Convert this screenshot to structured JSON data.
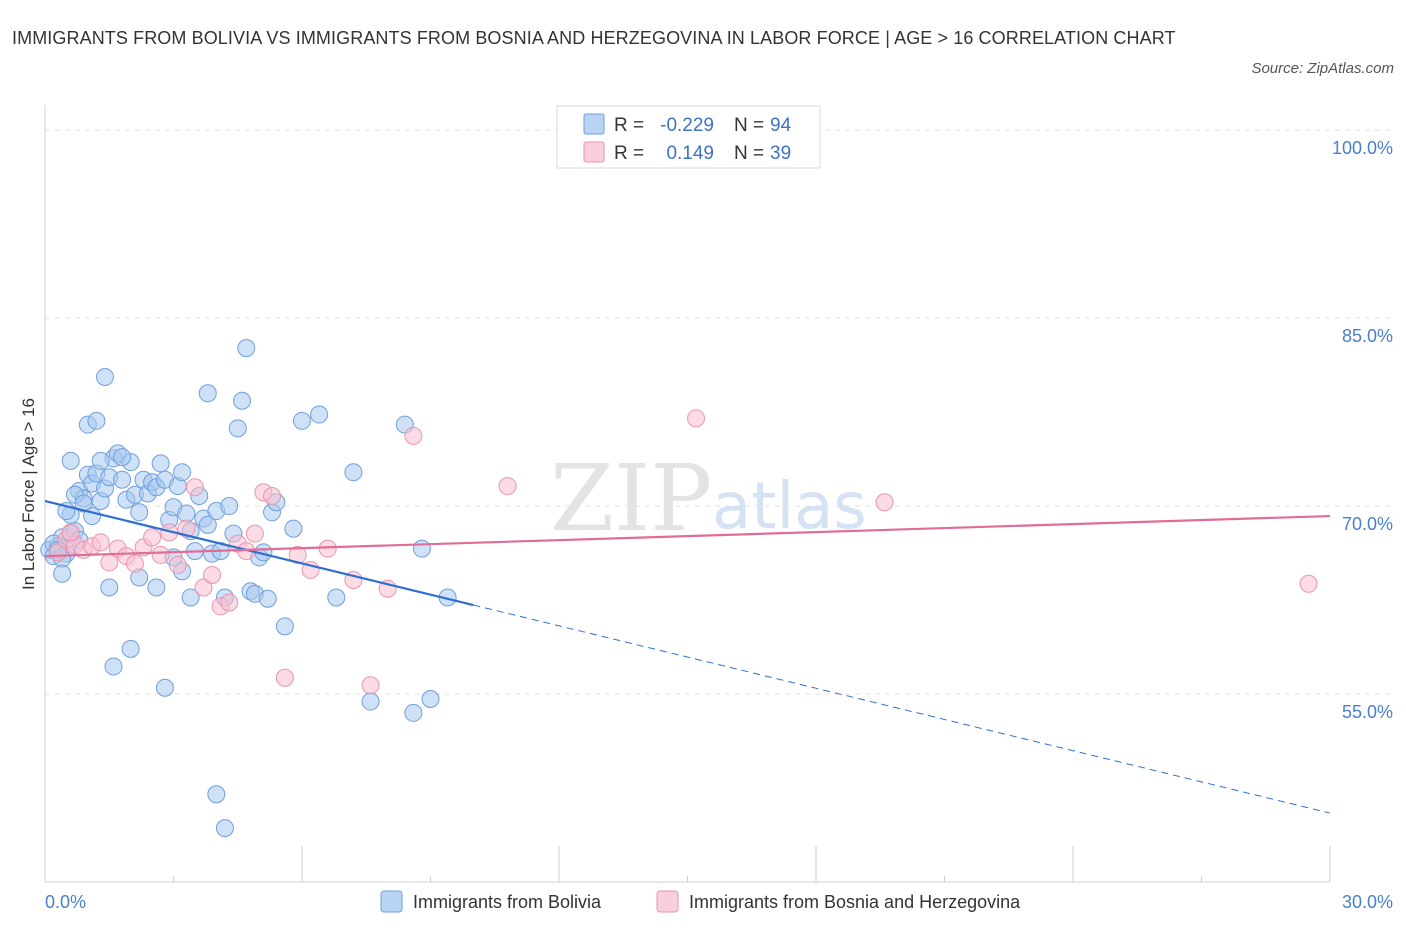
{
  "title": "IMMIGRANTS FROM BOLIVIA VS IMMIGRANTS FROM BOSNIA AND HERZEGOVINA IN LABOR FORCE | AGE > 16 CORRELATION CHART",
  "source": "Source: ZipAtlas.com",
  "watermark": {
    "zip": "ZIP",
    "atlas": "atlas"
  },
  "stats": {
    "bolivia": {
      "r_label": "R =",
      "r_value": "-0.229",
      "n_label": "N =",
      "n_value": "94"
    },
    "bosnia": {
      "r_label": "R =",
      "r_value": "0.149",
      "n_label": "N =",
      "n_value": "39"
    }
  },
  "legend": {
    "bolivia": "Immigrants from Bolivia",
    "bosnia": "Immigrants from Bosnia and Herzegovina"
  },
  "colors": {
    "bolivia_fill": "#a8c8f0",
    "bolivia_stroke": "#6f9fdc",
    "bolivia_line": "#2f6fd0",
    "bosnia_fill": "#f7c0d0",
    "bosnia_stroke": "#ea95b0",
    "bosnia_line": "#e06c98",
    "tick_text": "#4a7fcb",
    "grid": "#e2e2e2"
  },
  "chart_data": {
    "type": "scatter",
    "title": "IMMIGRANTS FROM BOLIVIA VS IMMIGRANTS FROM BOSNIA AND HERZEGOVINA IN LABOR FORCE | AGE > 16 CORRELATION CHART",
    "xlabel": "",
    "ylabel": "In Labor Force | Age > 16",
    "xlim": [
      0,
      30
    ],
    "ylim": [
      40,
      102
    ],
    "x_tick_labels": [
      "0.0%",
      "30.0%"
    ],
    "y_ticks": [
      55,
      70,
      85,
      100
    ],
    "y_tick_labels": [
      "55.0%",
      "70.0%",
      "85.0%",
      "100.0%"
    ],
    "grid": true,
    "series": [
      {
        "name": "Immigrants from Bolivia",
        "r": -0.229,
        "n": 94,
        "trend": {
          "x0": 0,
          "y0": 70.4,
          "x1": 10,
          "y1": 62.1,
          "dash_x1": 30,
          "dash_y1": 45.5
        },
        "points": [
          [
            0.1,
            66.5
          ],
          [
            0.2,
            66.0
          ],
          [
            0.3,
            66.8
          ],
          [
            0.4,
            67.5
          ],
          [
            0.5,
            66.2
          ],
          [
            0.6,
            67.8
          ],
          [
            0.7,
            68.0
          ],
          [
            0.8,
            67.3
          ],
          [
            0.2,
            67.0
          ],
          [
            0.4,
            65.8
          ],
          [
            0.6,
            69.3
          ],
          [
            0.8,
            71.2
          ],
          [
            0.9,
            70.6
          ],
          [
            1.0,
            72.5
          ],
          [
            1.1,
            71.8
          ],
          [
            1.2,
            72.6
          ],
          [
            1.3,
            70.4
          ],
          [
            1.4,
            71.4
          ],
          [
            1.5,
            72.3
          ],
          [
            1.6,
            73.8
          ],
          [
            1.7,
            74.2
          ],
          [
            1.8,
            72.1
          ],
          [
            1.9,
            70.5
          ],
          [
            2.0,
            73.5
          ],
          [
            2.1,
            70.9
          ],
          [
            2.2,
            69.5
          ],
          [
            2.3,
            72.1
          ],
          [
            2.4,
            71.0
          ],
          [
            2.5,
            71.9
          ],
          [
            2.6,
            71.5
          ],
          [
            2.7,
            73.4
          ],
          [
            2.8,
            72.1
          ],
          [
            2.9,
            68.9
          ],
          [
            3.0,
            69.9
          ],
          [
            3.1,
            71.6
          ],
          [
            3.2,
            72.7
          ],
          [
            3.3,
            69.4
          ],
          [
            3.4,
            68.0
          ],
          [
            3.5,
            66.4
          ],
          [
            3.6,
            70.8
          ],
          [
            3.7,
            69.0
          ],
          [
            3.8,
            68.5
          ],
          [
            3.9,
            66.2
          ],
          [
            4.0,
            69.6
          ],
          [
            4.1,
            66.4
          ],
          [
            4.2,
            62.7
          ],
          [
            4.3,
            70.0
          ],
          [
            4.4,
            67.8
          ],
          [
            4.5,
            76.2
          ],
          [
            4.6,
            78.4
          ],
          [
            4.7,
            82.6
          ],
          [
            4.8,
            63.2
          ],
          [
            4.9,
            63.0
          ],
          [
            5.0,
            65.9
          ],
          [
            5.1,
            66.3
          ],
          [
            5.2,
            62.6
          ],
          [
            5.3,
            69.5
          ],
          [
            5.4,
            70.3
          ],
          [
            5.6,
            60.4
          ],
          [
            5.8,
            68.2
          ],
          [
            6.0,
            76.8
          ],
          [
            6.4,
            77.3
          ],
          [
            6.8,
            62.7
          ],
          [
            7.2,
            72.7
          ],
          [
            7.6,
            54.4
          ],
          [
            8.4,
            76.5
          ],
          [
            8.6,
            53.5
          ],
          [
            8.8,
            66.6
          ],
          [
            9.0,
            54.6
          ],
          [
            9.4,
            62.7
          ],
          [
            1.0,
            76.5
          ],
          [
            1.2,
            76.8
          ],
          [
            1.4,
            80.3
          ],
          [
            1.5,
            63.5
          ],
          [
            1.6,
            57.2
          ],
          [
            1.8,
            73.9
          ],
          [
            2.0,
            58.6
          ],
          [
            2.2,
            64.3
          ],
          [
            2.6,
            63.5
          ],
          [
            2.8,
            55.5
          ],
          [
            3.0,
            65.9
          ],
          [
            3.2,
            64.8
          ],
          [
            3.4,
            62.7
          ],
          [
            3.8,
            79.0
          ],
          [
            4.0,
            47.0
          ],
          [
            4.2,
            44.3
          ],
          [
            0.5,
            69.6
          ],
          [
            0.3,
            66.5
          ],
          [
            0.7,
            70.9
          ],
          [
            0.9,
            70.2
          ],
          [
            1.1,
            69.2
          ],
          [
            0.4,
            64.6
          ],
          [
            1.3,
            73.6
          ],
          [
            0.6,
            73.6
          ]
        ]
      },
      {
        "name": "Immigrants from Bosnia and Herzegovina",
        "r": 0.149,
        "n": 39,
        "trend": {
          "x0": 0,
          "y0": 66.0,
          "x1": 30,
          "y1": 69.2
        },
        "points": [
          [
            0.3,
            66.3
          ],
          [
            0.5,
            67.3
          ],
          [
            0.7,
            66.9
          ],
          [
            0.9,
            66.5
          ],
          [
            1.1,
            66.8
          ],
          [
            1.3,
            67.1
          ],
          [
            1.5,
            65.5
          ],
          [
            1.7,
            66.6
          ],
          [
            1.9,
            66.0
          ],
          [
            2.1,
            65.4
          ],
          [
            2.3,
            66.7
          ],
          [
            2.5,
            67.5
          ],
          [
            2.7,
            66.1
          ],
          [
            2.9,
            67.9
          ],
          [
            3.1,
            65.3
          ],
          [
            3.3,
            68.2
          ],
          [
            3.5,
            71.5
          ],
          [
            3.7,
            63.5
          ],
          [
            3.9,
            64.5
          ],
          [
            4.1,
            62.0
          ],
          [
            4.3,
            62.3
          ],
          [
            4.5,
            67.0
          ],
          [
            4.7,
            66.4
          ],
          [
            4.9,
            67.8
          ],
          [
            5.1,
            71.1
          ],
          [
            5.3,
            70.8
          ],
          [
            5.6,
            56.3
          ],
          [
            5.9,
            66.1
          ],
          [
            6.2,
            64.9
          ],
          [
            6.6,
            66.6
          ],
          [
            7.2,
            64.1
          ],
          [
            7.6,
            55.7
          ],
          [
            8.0,
            63.4
          ],
          [
            8.6,
            75.6
          ],
          [
            10.8,
            71.6
          ],
          [
            15.2,
            77.0
          ],
          [
            19.6,
            70.3
          ],
          [
            29.5,
            63.8
          ],
          [
            0.6,
            67.9
          ]
        ]
      }
    ]
  }
}
